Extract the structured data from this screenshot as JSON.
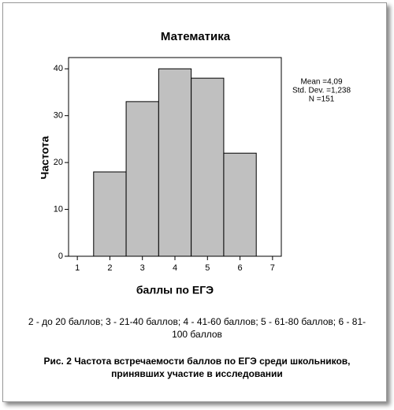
{
  "chart_data": {
    "type": "histogram",
    "title": "Математика",
    "xlabel": "баллы по ЕГЭ",
    "ylabel": "Частота",
    "bins": [
      1.5,
      2.5,
      3.5,
      4.5,
      5.5,
      6.5
    ],
    "counts": [
      18,
      33,
      40,
      38,
      22
    ],
    "color": "#c0c0c0",
    "xlim": [
      0.73,
      7.27
    ],
    "xticks": [
      1,
      2,
      3,
      4,
      5,
      6,
      7
    ],
    "ylim": [
      0,
      42.4
    ],
    "yticks": [
      0,
      10,
      20,
      30,
      40
    ],
    "stats": [
      "Mean =4,09",
      "Std. Dev. =1,238",
      "N =151"
    ]
  },
  "note": "2 - до 20 баллов; 3 - 21-40 баллов; 4 - 41-60 баллов; 5 - 61-80 баллов; 6 - 81-100 баллов",
  "caption": "Рис. 2 Частота встречаемости баллов по ЕГЭ среди школьников, принявших участие в исследовании"
}
